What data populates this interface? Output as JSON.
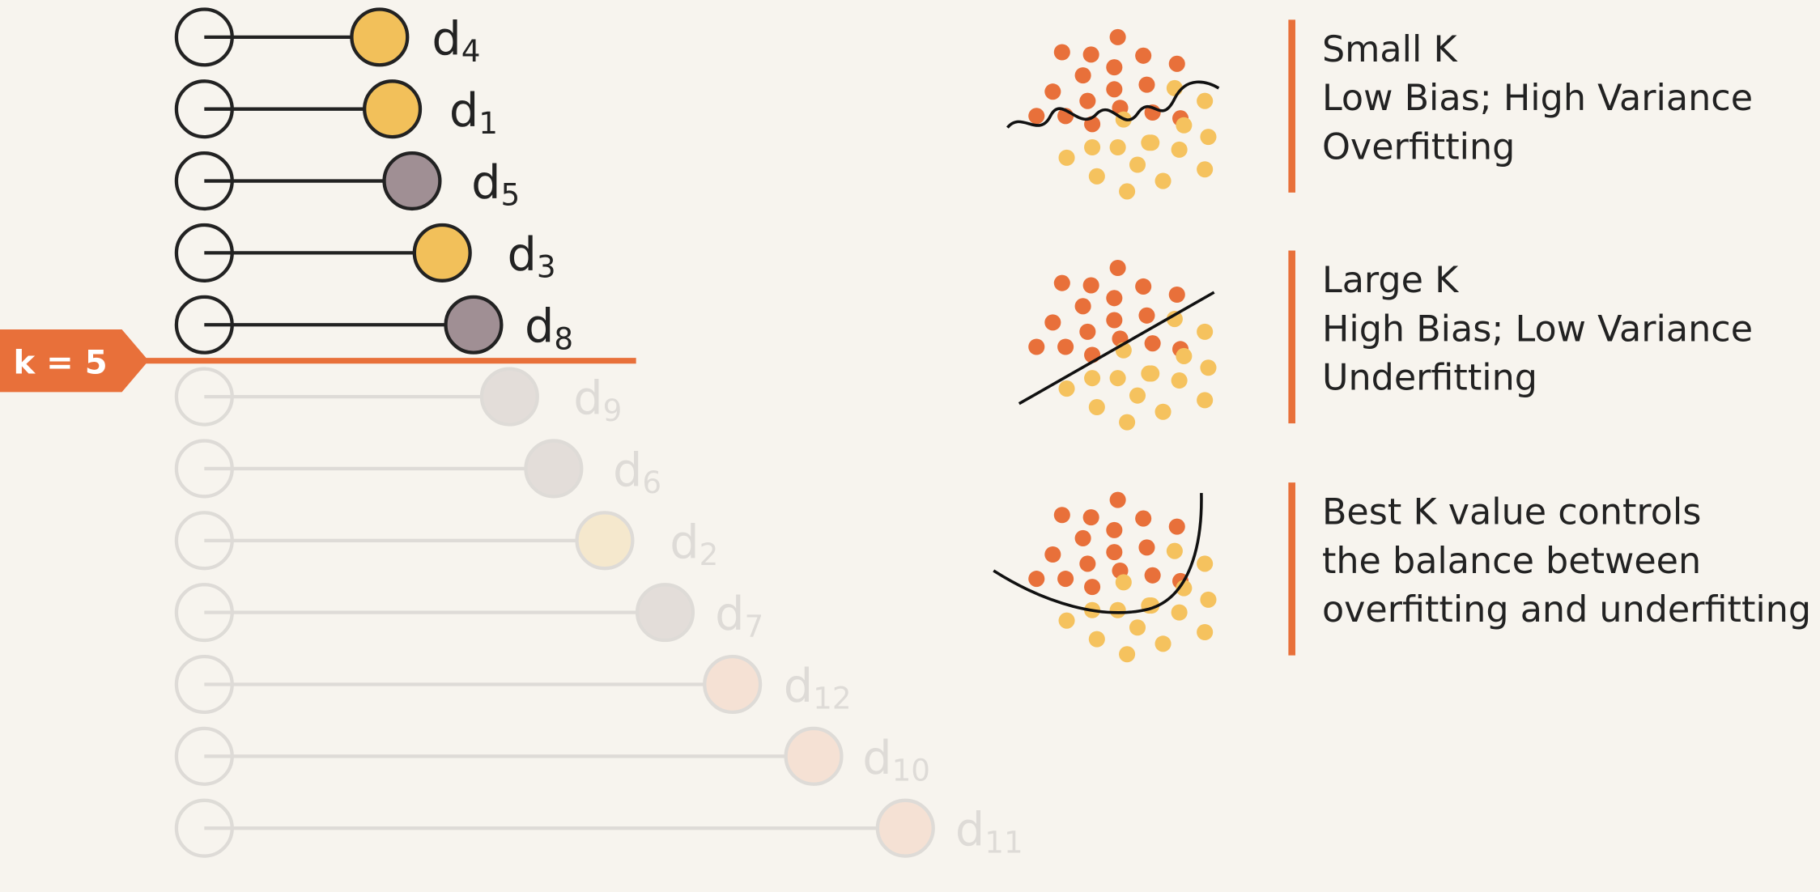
{
  "k_label": "k = 5",
  "neighbors": [
    {
      "name": "d",
      "sub": "4"
    },
    {
      "name": "d",
      "sub": "1"
    },
    {
      "name": "d",
      "sub": "5"
    },
    {
      "name": "d",
      "sub": "3"
    },
    {
      "name": "d",
      "sub": "8"
    },
    {
      "name": "d",
      "sub": "9"
    },
    {
      "name": "d",
      "sub": "6"
    },
    {
      "name": "d",
      "sub": "2"
    },
    {
      "name": "d",
      "sub": "7"
    },
    {
      "name": "d",
      "sub": "12"
    },
    {
      "name": "d",
      "sub": "10"
    },
    {
      "name": "d",
      "sub": "11"
    }
  ],
  "panels": [
    {
      "lines": [
        "Small K",
        "Low Bias; High Variance",
        "Overfitting"
      ]
    },
    {
      "lines": [
        "Large K",
        "High Bias; Low Variance",
        "Underfitting"
      ]
    },
    {
      "lines": [
        "Best K value controls",
        "the balance between",
        "overfitting and underfitting"
      ]
    }
  ]
}
